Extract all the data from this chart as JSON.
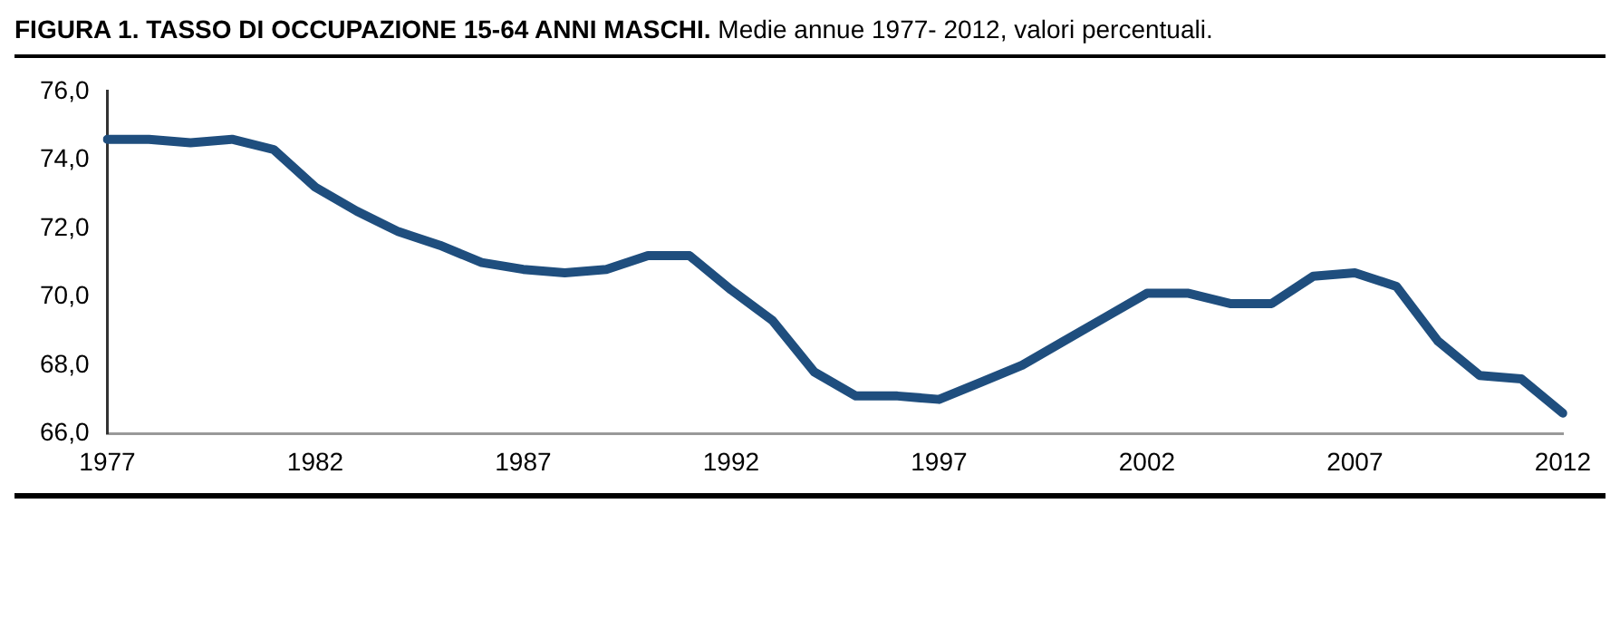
{
  "chart_data": {
    "type": "line",
    "title": "FIGURA 1. TASSO DI OCCUPAZIONE 15-64 ANNI MASCHI.",
    "subtitle": "Medie annue 1977- 2012, valori percentuali.",
    "categories": [
      "1977",
      null,
      null,
      null,
      null,
      "1982",
      null,
      null,
      null,
      null,
      "1987",
      null,
      null,
      null,
      null,
      "1992",
      null,
      null,
      null,
      null,
      "1997",
      null,
      null,
      null,
      null,
      "2002",
      null,
      null,
      null,
      null,
      "2007",
      null,
      null,
      null,
      null,
      "2012"
    ],
    "series": [
      {
        "color": "#1f4e7e",
        "values": [
          74.6,
          74.6,
          74.5,
          74.6,
          74.3,
          73.2,
          72.5,
          71.9,
          71.5,
          71.0,
          70.8,
          70.7,
          70.8,
          71.2,
          71.2,
          70.2,
          69.3,
          67.8,
          67.1,
          67.1,
          67.0,
          67.5,
          68.0,
          68.7,
          69.4,
          70.1,
          70.1,
          69.8,
          69.8,
          70.6,
          70.7,
          70.3,
          68.7,
          67.7,
          67.6,
          66.6
        ]
      }
    ],
    "ylim": [
      66,
      76
    ],
    "yticks": [
      {
        "value": 66,
        "label": "66,0"
      },
      {
        "value": 68,
        "label": "68,0"
      },
      {
        "value": 70,
        "label": "70,0"
      },
      {
        "value": 72,
        "label": "72,0"
      },
      {
        "value": 74,
        "label": "74,0"
      },
      {
        "value": 76,
        "label": "76,0"
      }
    ],
    "grid": false,
    "legend": false,
    "marker": "none",
    "line_style": "solid"
  }
}
